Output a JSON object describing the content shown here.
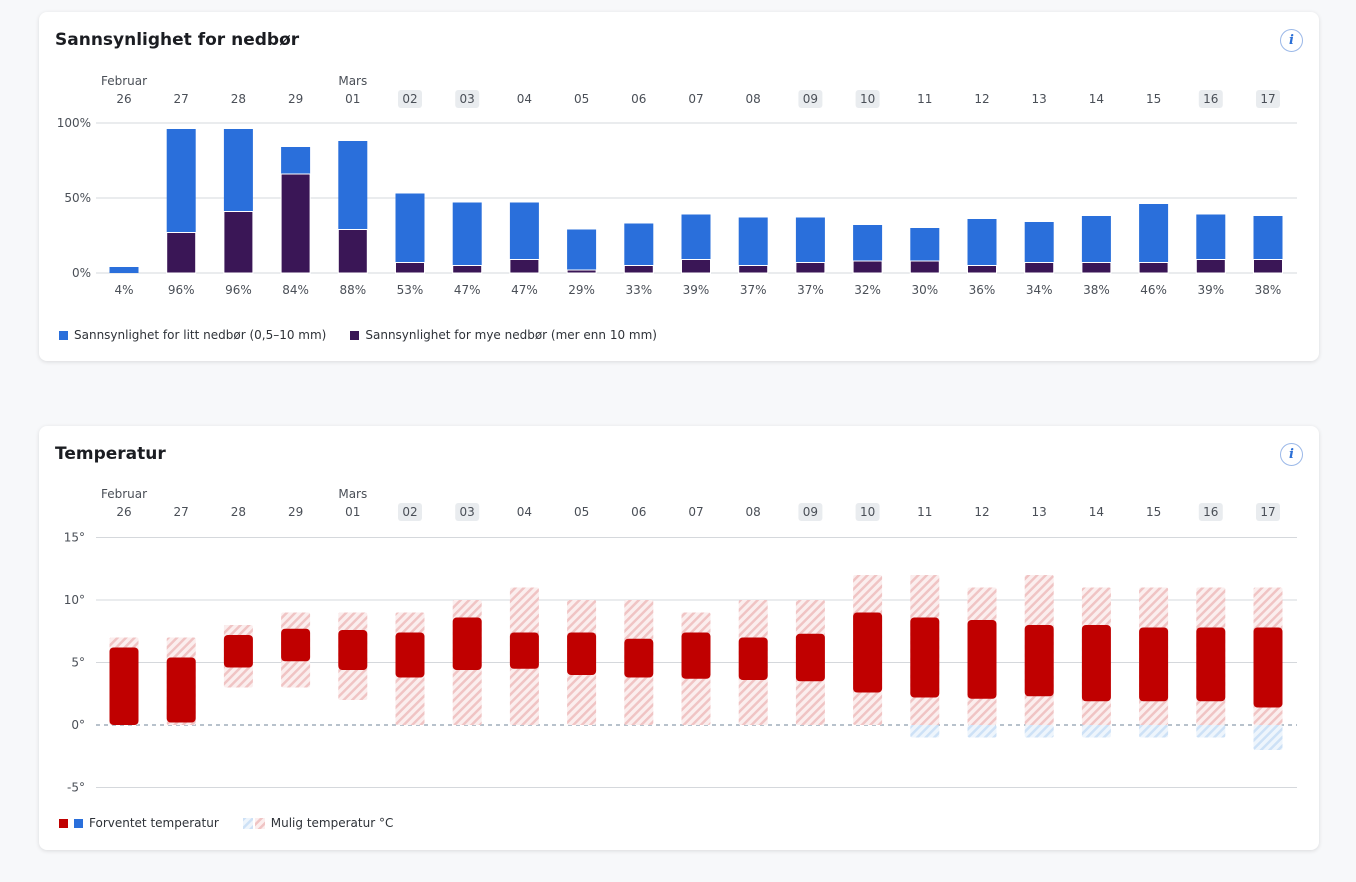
{
  "colors": {
    "light": "#2a6fdb",
    "heavy": "#3a1656",
    "expected": "#c00000",
    "expected_neg": "#2a6fdb",
    "possible": "#f2c6c6",
    "possible_neg": "#cfe3f7",
    "weekend_bg": "#e9ecef"
  },
  "precip": {
    "title": "Sannsynlighet for nedbør",
    "info_label": "i",
    "legend_light": "Sannsynlighet for litt nedbør (0,5–10 mm)",
    "legend_heavy": "Sannsynlighet for mye nedbør (mer enn 10 mm)"
  },
  "temp": {
    "title": "Temperatur",
    "info_label": "i",
    "legend_expected": "Forventet temperatur",
    "legend_possible": "Mulig temperatur °C"
  },
  "chart_data": [
    {
      "type": "bar",
      "title": "Sannsynlighet for nedbør",
      "months": {
        "0": "Februar",
        "4": "Mars"
      },
      "categories": [
        "26",
        "27",
        "28",
        "29",
        "01",
        "02",
        "03",
        "04",
        "05",
        "06",
        "07",
        "08",
        "09",
        "10",
        "11",
        "12",
        "13",
        "14",
        "15",
        "16",
        "17"
      ],
      "weekend": [
        "02",
        "03",
        "09",
        "10",
        "16",
        "17"
      ],
      "yticks": [
        "0%",
        "50%",
        "100%"
      ],
      "ylim": [
        0,
        100
      ],
      "total_labels": [
        "4%",
        "96%",
        "96%",
        "84%",
        "88%",
        "53%",
        "47%",
        "47%",
        "29%",
        "33%",
        "39%",
        "37%",
        "37%",
        "32%",
        "30%",
        "36%",
        "34%",
        "38%",
        "46%",
        "39%",
        "38%"
      ],
      "series": [
        {
          "name": "Sannsynlighet for mye nedbør (mer enn 10 mm)",
          "values": [
            0,
            27,
            41,
            66,
            29,
            7,
            5,
            9,
            2,
            5,
            9,
            5,
            7,
            8,
            8,
            5,
            7,
            7,
            7,
            9,
            9
          ]
        },
        {
          "name": "Sannsynlighet for litt nedbør (0,5–10 mm)",
          "total_values": [
            4,
            96,
            96,
            84,
            88,
            53,
            47,
            47,
            29,
            33,
            39,
            37,
            37,
            32,
            30,
            36,
            34,
            38,
            46,
            39,
            38
          ]
        }
      ]
    },
    {
      "type": "bar",
      "title": "Temperatur",
      "months": {
        "0": "Februar",
        "4": "Mars"
      },
      "categories": [
        "26",
        "27",
        "28",
        "29",
        "01",
        "02",
        "03",
        "04",
        "05",
        "06",
        "07",
        "08",
        "09",
        "10",
        "11",
        "12",
        "13",
        "14",
        "15",
        "16",
        "17"
      ],
      "weekend": [
        "02",
        "03",
        "09",
        "10",
        "16",
        "17"
      ],
      "yticks": [
        "-5°",
        "0°",
        "5°",
        "10°",
        "15°"
      ],
      "ytick_values": [
        -5,
        0,
        5,
        10,
        15
      ],
      "ylim": [
        -5,
        15
      ],
      "expected": [
        [
          0,
          6.2
        ],
        [
          0.2,
          5.4
        ],
        [
          4.6,
          7.2
        ],
        [
          5.1,
          7.7
        ],
        [
          4.4,
          7.6
        ],
        [
          3.8,
          7.4
        ],
        [
          4.4,
          8.6
        ],
        [
          4.5,
          7.4
        ],
        [
          4.0,
          7.4
        ],
        [
          3.8,
          6.9
        ],
        [
          3.7,
          7.4
        ],
        [
          3.6,
          7.0
        ],
        [
          3.5,
          7.3
        ],
        [
          2.6,
          9.0
        ],
        [
          2.2,
          8.6
        ],
        [
          2.1,
          8.4
        ],
        [
          2.3,
          8.0
        ],
        [
          1.9,
          8.0
        ],
        [
          1.9,
          7.8
        ],
        [
          1.9,
          7.8
        ],
        [
          1.4,
          7.8
        ]
      ],
      "possible": [
        [
          0,
          7
        ],
        [
          0,
          7
        ],
        [
          3,
          8
        ],
        [
          3,
          9
        ],
        [
          2,
          9
        ],
        [
          0,
          9
        ],
        [
          0,
          10
        ],
        [
          0,
          11
        ],
        [
          0,
          10
        ],
        [
          0,
          10
        ],
        [
          0,
          9
        ],
        [
          0,
          10
        ],
        [
          0,
          10
        ],
        [
          0,
          12
        ],
        [
          -1,
          12
        ],
        [
          -1,
          11
        ],
        [
          -1,
          12
        ],
        [
          -1,
          11
        ],
        [
          -1,
          11
        ],
        [
          -1,
          11
        ],
        [
          -2,
          11
        ]
      ]
    }
  ]
}
